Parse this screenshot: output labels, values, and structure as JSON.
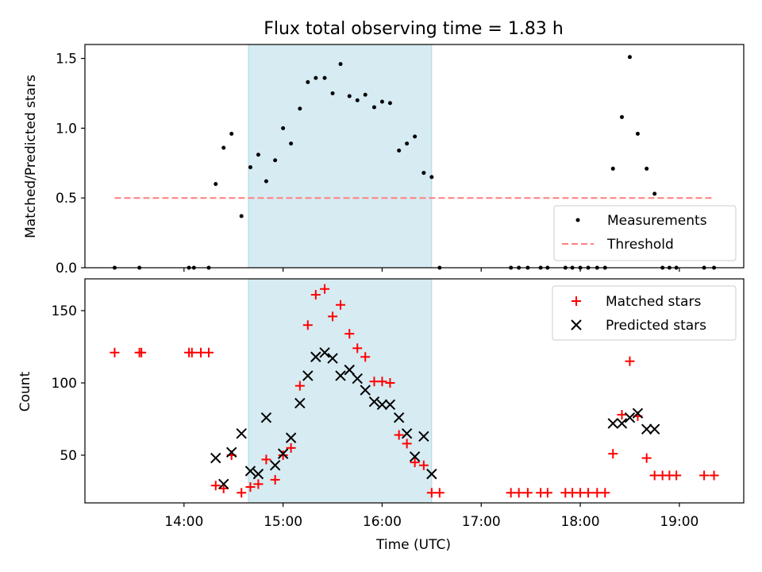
{
  "figure": {
    "title": "Flux total observing time = 1.83 h",
    "xlabel": "Time (UTC)",
    "x_ticks": [
      {
        "t": 14.0,
        "label": "14:00"
      },
      {
        "t": 15.0,
        "label": "15:00"
      },
      {
        "t": 16.0,
        "label": "16:00"
      },
      {
        "t": 17.0,
        "label": "17:00"
      },
      {
        "t": 18.0,
        "label": "18:00"
      },
      {
        "t": 19.0,
        "label": "19:00"
      }
    ],
    "xlim": [
      13.0,
      19.65
    ],
    "shaded_interval": [
      14.65,
      16.5
    ],
    "colors": {
      "shade": "#add8e6",
      "measurement": "#000000",
      "threshold": "#ff7f7f",
      "matched": "#ff0000",
      "predicted": "#000000"
    }
  },
  "chart_data": [
    {
      "type": "scatter",
      "panel": "top",
      "ylabel": "Matched/Predicted stars",
      "ylim": [
        0,
        1.6
      ],
      "y_ticks": [
        {
          "v": 0.0,
          "label": "0.0"
        },
        {
          "v": 0.5,
          "label": "0.5"
        },
        {
          "v": 1.0,
          "label": "1.0"
        },
        {
          "v": 1.5,
          "label": "1.5"
        }
      ],
      "legend": {
        "placement": "lower-right",
        "entries": [
          "Measurements",
          "Threshold"
        ]
      },
      "threshold": {
        "name": "Threshold",
        "y": 0.5,
        "x_range": [
          13.3,
          19.35
        ]
      },
      "series": [
        {
          "name": "Measurements",
          "x": [
            13.3,
            13.55,
            14.05,
            14.1,
            14.25,
            14.32,
            14.4,
            14.48,
            14.58,
            14.67,
            14.75,
            14.83,
            14.92,
            15.0,
            15.08,
            15.17,
            15.25,
            15.33,
            15.42,
            15.5,
            15.58,
            15.67,
            15.75,
            15.83,
            15.92,
            16.0,
            16.08,
            16.17,
            16.25,
            16.33,
            16.42,
            16.5,
            16.58,
            17.3,
            17.38,
            17.47,
            17.6,
            17.67,
            17.85,
            17.92,
            18.0,
            18.08,
            18.17,
            18.25,
            18.33,
            18.42,
            18.5,
            18.58,
            18.67,
            18.75,
            18.83,
            18.9,
            18.97,
            19.25,
            19.35
          ],
          "y": [
            0,
            0,
            0,
            0,
            0,
            0.6,
            0.86,
            0.96,
            0.37,
            0.72,
            0.81,
            0.62,
            0.77,
            1.0,
            0.89,
            1.14,
            1.33,
            1.36,
            1.36,
            1.25,
            1.46,
            1.23,
            1.2,
            1.24,
            1.15,
            1.19,
            1.18,
            0.84,
            0.89,
            0.94,
            0.68,
            0.65,
            0,
            0,
            0,
            0,
            0,
            0,
            0,
            0,
            0,
            0,
            0,
            0,
            0.71,
            1.08,
            1.51,
            0.96,
            0.71,
            0.53,
            0,
            0,
            0,
            0,
            0
          ]
        }
      ]
    },
    {
      "type": "scatter",
      "panel": "bottom",
      "ylabel": "Count",
      "ylim": [
        17,
        172
      ],
      "y_ticks": [
        {
          "v": 50,
          "label": "50"
        },
        {
          "v": 100,
          "label": "100"
        },
        {
          "v": 150,
          "label": "150"
        }
      ],
      "legend": {
        "placement": "upper-right",
        "entries": [
          "Matched stars",
          "Predicted stars"
        ]
      },
      "series": [
        {
          "name": "Matched stars",
          "marker": "plus",
          "x": [
            13.3,
            13.55,
            13.57,
            14.05,
            14.08,
            14.17,
            14.25,
            14.32,
            14.4,
            14.48,
            14.58,
            14.67,
            14.75,
            14.83,
            14.92,
            15.0,
            15.08,
            15.17,
            15.25,
            15.33,
            15.42,
            15.5,
            15.58,
            15.67,
            15.75,
            15.83,
            15.92,
            16.0,
            16.08,
            16.17,
            16.25,
            16.33,
            16.42,
            16.5,
            16.58,
            17.3,
            17.38,
            17.47,
            17.6,
            17.67,
            17.85,
            17.92,
            18.0,
            18.08,
            18.17,
            18.25,
            18.33,
            18.42,
            18.5,
            18.58,
            18.67,
            18.75,
            18.83,
            18.9,
            18.97,
            19.25,
            19.35
          ],
          "y": [
            121,
            121,
            121,
            121,
            121,
            121,
            121,
            29,
            27,
            50,
            24,
            28,
            30,
            47,
            33,
            50,
            55,
            98,
            140,
            161,
            165,
            146,
            154,
            134,
            124,
            118,
            101,
            101,
            100,
            64,
            58,
            45,
            43,
            24,
            24,
            24,
            24,
            24,
            24,
            24,
            24,
            24,
            24,
            24,
            24,
            24,
            51,
            78,
            115,
            77,
            48,
            36,
            36,
            36,
            36,
            36,
            36
          ]
        },
        {
          "name": "Predicted stars",
          "marker": "x",
          "x": [
            14.32,
            14.4,
            14.48,
            14.58,
            14.67,
            14.75,
            14.83,
            14.92,
            15.0,
            15.08,
            15.17,
            15.25,
            15.33,
            15.42,
            15.5,
            15.58,
            15.67,
            15.75,
            15.83,
            15.92,
            16.0,
            16.08,
            16.17,
            16.25,
            16.33,
            16.42,
            16.5,
            18.33,
            18.42,
            18.5,
            18.58,
            18.67,
            18.75
          ],
          "y": [
            48,
            30,
            52,
            65,
            39,
            37,
            76,
            43,
            51,
            62,
            86,
            105,
            118,
            121,
            117,
            105,
            109,
            103,
            95,
            87,
            85,
            85,
            76,
            65,
            49,
            63,
            37,
            72,
            72,
            76,
            79,
            68,
            68
          ]
        }
      ]
    }
  ]
}
